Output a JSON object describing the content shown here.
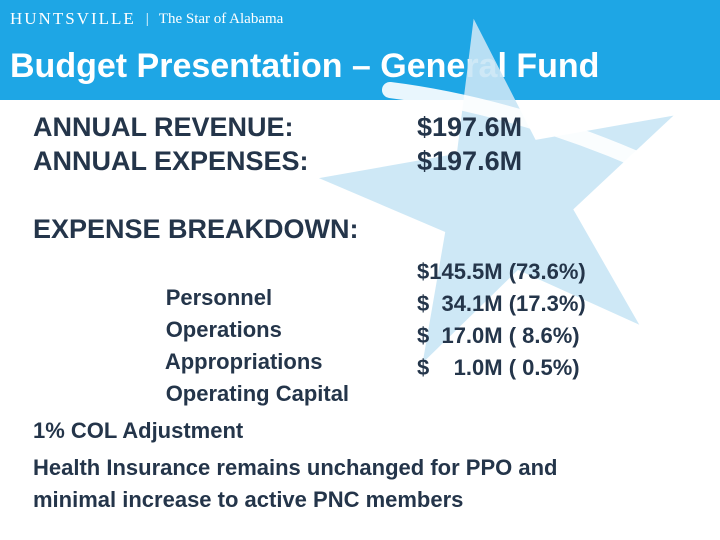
{
  "header": {
    "brand_name": "HUNTSVILLE",
    "brand_separator": "|",
    "brand_tagline": "The Star of Alabama",
    "title": "Budget Presentation – General Fund",
    "bar_color": "#1ea6e5"
  },
  "summary": [
    {
      "label": "ANNUAL REVENUE:",
      "value": "$197.6M"
    },
    {
      "label": "ANNUAL EXPENSES:",
      "value": "$197.6M"
    }
  ],
  "breakdown": {
    "heading": "EXPENSE BREAKDOWN:",
    "rows": [
      {
        "label": "Personnel",
        "amount": "$145.5M (73.6%)"
      },
      {
        "label": "Operations",
        "amount": "$  34.1M (17.3%)"
      },
      {
        "label": "Appropriations",
        "amount": "$  17.0M ( 8.6%)"
      },
      {
        "label": "Operating Capital",
        "amount": "$    1.0M ( 0.5%)"
      }
    ]
  },
  "notes": {
    "col": "1% COL Adjustment",
    "health_line1": "Health Insurance remains unchanged for PPO and",
    "health_line2": "minimal increase to active PNC members"
  },
  "colors": {
    "text": "#24354a",
    "star": "#c9e6f5"
  }
}
